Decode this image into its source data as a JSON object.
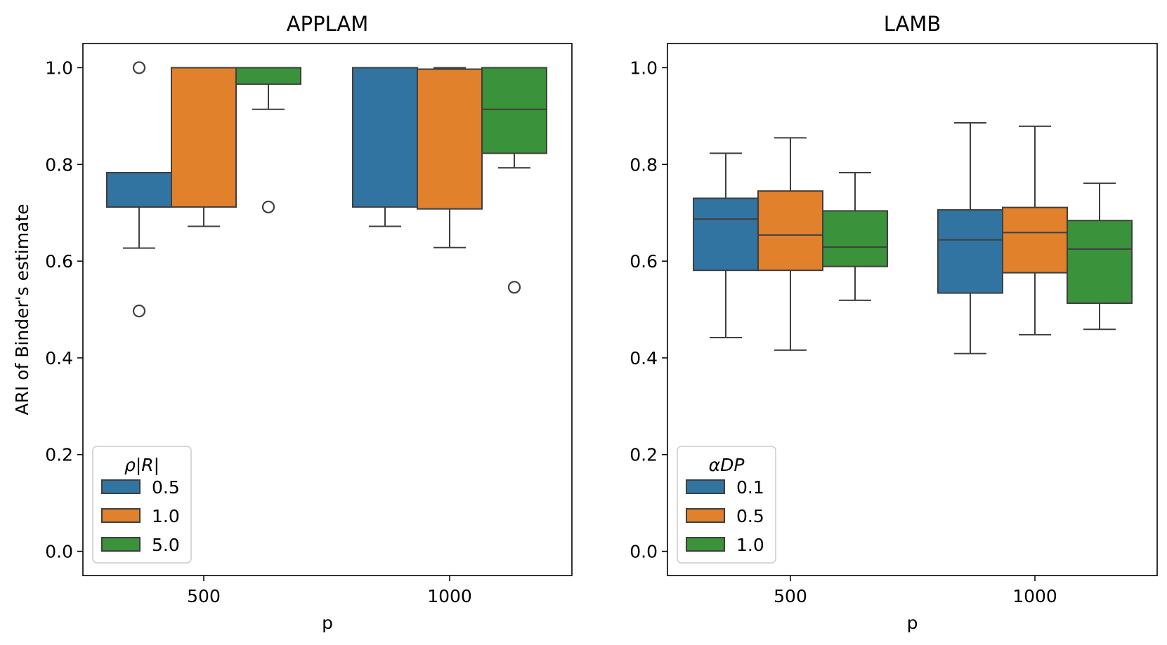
{
  "chart_data": [
    {
      "type": "box",
      "title": "APPLAM",
      "xlabel": "p",
      "ylabel": "ARI of Binder's estimate",
      "categories": [
        "500",
        "1000"
      ],
      "ylim": [
        -0.05,
        1.05
      ],
      "yticks": [
        "0.0",
        "0.2",
        "0.4",
        "0.6",
        "0.8",
        "1.0"
      ],
      "legend": {
        "title": "ρ|R|",
        "position": "lower-left",
        "entries": [
          "0.5",
          "1.0",
          "5.0"
        ]
      },
      "series": [
        {
          "name": "0.5",
          "color": "#3274a1",
          "boxes": [
            {
              "category": "500",
              "q1": 0.712,
              "median": 0.712,
              "q3": 0.783,
              "whisker_low": 0.627,
              "whisker_high": 0.783,
              "outliers": [
                1.0,
                0.497
              ]
            },
            {
              "category": "1000",
              "q1": 0.712,
              "median": 1.0,
              "q3": 1.0,
              "whisker_low": 0.672,
              "whisker_high": 1.0,
              "outliers": []
            }
          ]
        },
        {
          "name": "1.0",
          "color": "#e1812c",
          "boxes": [
            {
              "category": "500",
              "q1": 0.712,
              "median": 1.0,
              "q3": 1.0,
              "whisker_low": 0.672,
              "whisker_high": 1.0,
              "outliers": []
            },
            {
              "category": "1000",
              "q1": 0.708,
              "median": 0.997,
              "q3": 0.997,
              "whisker_low": 0.628,
              "whisker_high": 1.0,
              "outliers": []
            }
          ]
        },
        {
          "name": "5.0",
          "color": "#3a923a",
          "boxes": [
            {
              "category": "500",
              "q1": 0.966,
              "median": 1.0,
              "q3": 1.0,
              "whisker_low": 0.914,
              "whisker_high": 1.0,
              "outliers": [
                0.712
              ]
            },
            {
              "category": "1000",
              "q1": 0.823,
              "median": 0.914,
              "q3": 1.0,
              "whisker_low": 0.793,
              "whisker_high": 1.0,
              "outliers": [
                0.546
              ]
            }
          ]
        }
      ]
    },
    {
      "type": "box",
      "title": "LAMB",
      "xlabel": "p",
      "ylabel": "",
      "categories": [
        "500",
        "1000"
      ],
      "ylim": [
        -0.05,
        1.05
      ],
      "yticks": [
        "0.0",
        "0.2",
        "0.4",
        "0.6",
        "0.8",
        "1.0"
      ],
      "legend": {
        "title": "αDP",
        "position": "lower-left",
        "entries": [
          "0.1",
          "0.5",
          "1.0"
        ]
      },
      "series": [
        {
          "name": "0.1",
          "color": "#3274a1",
          "boxes": [
            {
              "category": "500",
              "q1": 0.581,
              "median": 0.687,
              "q3": 0.73,
              "whisker_low": 0.442,
              "whisker_high": 0.823,
              "outliers": []
            },
            {
              "category": "1000",
              "q1": 0.534,
              "median": 0.644,
              "q3": 0.706,
              "whisker_low": 0.409,
              "whisker_high": 0.886,
              "outliers": []
            }
          ]
        },
        {
          "name": "0.5",
          "color": "#e1812c",
          "boxes": [
            {
              "category": "500",
              "q1": 0.581,
              "median": 0.654,
              "q3": 0.745,
              "whisker_low": 0.416,
              "whisker_high": 0.855,
              "outliers": []
            },
            {
              "category": "1000",
              "q1": 0.576,
              "median": 0.659,
              "q3": 0.711,
              "whisker_low": 0.448,
              "whisker_high": 0.879,
              "outliers": []
            }
          ]
        },
        {
          "name": "1.0",
          "color": "#3a923a",
          "boxes": [
            {
              "category": "500",
              "q1": 0.589,
              "median": 0.629,
              "q3": 0.704,
              "whisker_low": 0.519,
              "whisker_high": 0.783,
              "outliers": []
            },
            {
              "category": "1000",
              "q1": 0.513,
              "median": 0.625,
              "q3": 0.684,
              "whisker_low": 0.459,
              "whisker_high": 0.761,
              "outliers": []
            }
          ]
        }
      ]
    }
  ]
}
